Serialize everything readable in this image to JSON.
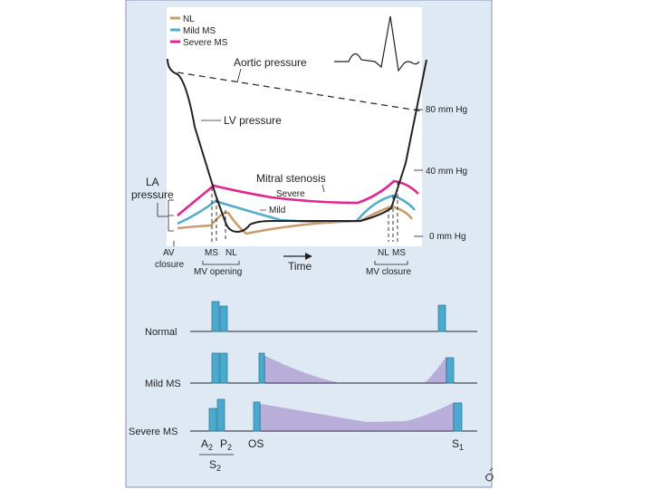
{
  "colors": {
    "panel": "#dfe9f4",
    "panel_border": "#7f97b6",
    "plot_bg": "#ffffff",
    "nl": "#c89d6e",
    "mild": "#55adc9",
    "severe": "#e0268f",
    "bar_fill": "#4aa9cc",
    "bar_stroke": "#2d7f9d",
    "murmur": "#7e56b0",
    "ink": "#222222"
  },
  "legend": {
    "items": [
      {
        "label": "NL",
        "color_key": "nl"
      },
      {
        "label": "Mild MS",
        "color_key": "mild"
      },
      {
        "label": "Severe MS",
        "color_key": "severe"
      }
    ]
  },
  "pressure_diagram": {
    "aortic_label": "Aortic pressure",
    "lv_label": "LV pressure",
    "mitral_label": "Mitral stenosis",
    "severe_label": "Severe",
    "mild_label": "Mild",
    "la_label_line1": "LA",
    "la_label_line2": "pressure",
    "scale_labels": [
      "80 mm Hg",
      "40 mm Hg",
      "0 mm Hg"
    ],
    "av_label_line1": "AV",
    "av_label_line2": "closure",
    "ms_label": "MS",
    "nl_label": "NL",
    "mv_opening": "MV opening",
    "time_label": "Time",
    "mv_closure": "MV closure"
  },
  "phonocardiogram": {
    "rows": [
      {
        "label": "Normal",
        "murmur": "none"
      },
      {
        "label": "Mild MS",
        "murmur": "mild"
      },
      {
        "label": "Severe MS",
        "murmur": "severe"
      }
    ],
    "a2_label": "A",
    "a2_sub": "2",
    "p2_label": "P",
    "p2_sub": "2",
    "os_label": "OS",
    "s1_label": "S",
    "s1_sub": "1",
    "s2_label": "S",
    "s2_sub": "2"
  }
}
